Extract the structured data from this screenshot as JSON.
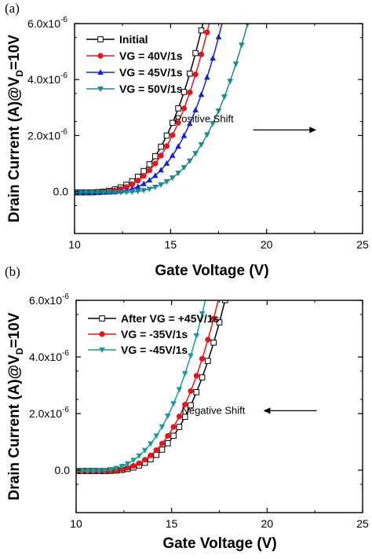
{
  "chart_data": [
    {
      "panel_label": "(a)",
      "type": "line",
      "xlabel": "Gate Voltage (V)",
      "ylabel": {
        "main": "Drain Current (A)@V",
        "sub": "D",
        "tail": "=10V"
      },
      "xlim": [
        10,
        25
      ],
      "ylim": [
        -1.5e-06,
        6e-06
      ],
      "xticks": [
        10,
        15,
        20,
        25
      ],
      "xtick_labels": [
        "10",
        "15",
        "20",
        "25"
      ],
      "yticks": [
        0,
        2e-06,
        4e-06,
        6e-06
      ],
      "ytick_labels": [
        {
          "mant": "0.0",
          "exp": ""
        },
        {
          "mant": "2.0x10",
          "exp": "-6"
        },
        {
          "mant": "4.0x10",
          "exp": "-6"
        },
        {
          "mant": "6.0x10",
          "exp": "-6"
        }
      ],
      "grid": false,
      "legend_position": "top-left",
      "series": [
        {
          "name": "Initial",
          "color": "#000000",
          "marker": "square-open",
          "vth": 10.5,
          "k": 2.55e-08
        },
        {
          "name": "VG = 40V/1s",
          "color": "#e8141b",
          "marker": "circle",
          "vth": 10.7,
          "k": 2.4e-08
        },
        {
          "name": "VG = 45V/1s",
          "color": "#1222d8",
          "marker": "triangle-up",
          "vth": 11.2,
          "k": 2.22e-08
        },
        {
          "name": "VG = 50V/1s",
          "color": "#1a8b8b",
          "marker": "triangle-down",
          "vth": 12.0,
          "k": 1.75e-08
        }
      ],
      "annotation": {
        "text": "Positive Shift",
        "arrow_from": [
          19.3,
          2.2e-06
        ],
        "arrow_to": [
          22.6,
          2.2e-06
        ]
      }
    },
    {
      "panel_label": "(b)",
      "type": "line",
      "xlabel": "Gate Voltage (V)",
      "ylabel": {
        "main": "Drain Current (A)@V",
        "sub": "D",
        "tail": "=10V"
      },
      "xlim": [
        10,
        25
      ],
      "ylim": [
        -1.5e-06,
        6e-06
      ],
      "xticks": [
        10,
        15,
        20,
        25
      ],
      "xtick_labels": [
        "10",
        "15",
        "20",
        "25"
      ],
      "yticks": [
        0,
        2e-06,
        4e-06,
        6e-06
      ],
      "ytick_labels": [
        {
          "mant": "0.0",
          "exp": ""
        },
        {
          "mant": "2.0x10",
          "exp": "-6"
        },
        {
          "mant": "4.0x10",
          "exp": "-6"
        },
        {
          "mant": "6.0x10",
          "exp": "-6"
        }
      ],
      "grid": false,
      "legend_position": "top-left",
      "series": [
        {
          "name": "After VG = +45V/1s",
          "color": "#000000",
          "marker": "square-open",
          "vth": 11.2,
          "k": 2.1e-08
        },
        {
          "name": "VG = -35V/1s",
          "color": "#e8141b",
          "marker": "circle",
          "vth": 11.0,
          "k": 2.26e-08
        },
        {
          "name": "VG = -45V/1s",
          "color": "#1a9b9b",
          "marker": "triangle-down",
          "vth": 10.5,
          "k": 2.45e-08
        }
      ],
      "annotation": {
        "text": "Negative Shift",
        "arrow_from": [
          22.6,
          2.1e-06
        ],
        "arrow_to": [
          19.8,
          2.1e-06
        ]
      }
    }
  ]
}
